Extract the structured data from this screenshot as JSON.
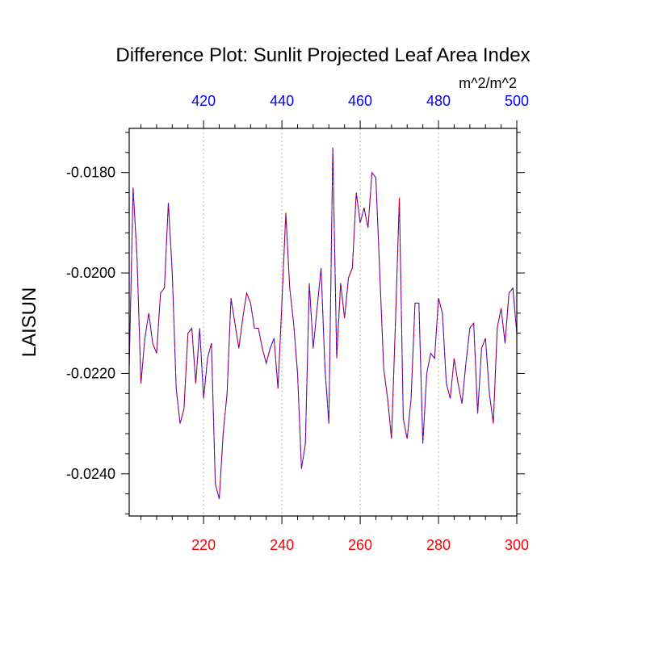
{
  "chart_data": {
    "type": "line",
    "title": "Difference Plot: Sunlit Projected Leaf Area Index",
    "units": "m^2/m^2",
    "ylabel": "LAISUN",
    "xlabel": "",
    "x_range": [
      201,
      300
    ],
    "x_ticks": [
      "220",
      "240",
      "260",
      "280",
      "300"
    ],
    "x_top_range": [
      401,
      500
    ],
    "x_top_ticks": [
      "420",
      "440",
      "460",
      "480",
      "500"
    ],
    "ylim": [
      -0.02484,
      -0.01712
    ],
    "y_ticks": [
      "-0.0180",
      "-0.0200",
      "-0.0220",
      "-0.0240"
    ],
    "bottom_axis_color": "#ff0000",
    "top_axis_color": "#0000ff",
    "grid": "vertical dotted at labeled x ticks",
    "series": [
      {
        "color": "#0000ff",
        "style": "solid",
        "x": [
          201,
          202,
          203,
          204,
          205,
          206,
          207,
          208,
          209,
          210,
          211,
          212,
          213,
          214,
          215,
          216,
          217,
          218,
          219,
          220,
          221,
          222,
          223,
          224,
          225,
          226,
          227,
          228,
          229,
          230,
          231,
          232,
          233,
          234,
          235,
          236,
          237,
          238,
          239,
          240,
          241,
          242,
          243,
          244,
          245,
          246,
          247,
          248,
          249,
          250,
          251,
          252,
          253,
          254,
          255,
          256,
          257,
          258,
          259,
          260,
          261,
          262,
          263,
          264,
          265,
          266,
          267,
          268,
          269,
          270,
          271,
          272,
          273,
          274,
          275,
          276,
          277,
          278,
          279,
          280,
          281,
          282,
          283,
          284,
          285,
          286,
          287,
          288,
          289,
          290,
          291,
          292,
          293,
          294,
          295,
          296,
          297,
          298,
          299,
          300
        ],
        "y": [
          -0.0219,
          -0.0183,
          -0.0197,
          -0.0222,
          -0.0213,
          -0.0208,
          -0.0214,
          -0.0216,
          -0.0204,
          -0.0203,
          -0.0186,
          -0.02,
          -0.0223,
          -0.023,
          -0.0227,
          -0.0212,
          -0.0211,
          -0.0222,
          -0.0211,
          -0.0225,
          -0.0217,
          -0.0214,
          -0.0242,
          -0.0245,
          -0.0232,
          -0.0224,
          -0.0205,
          -0.021,
          -0.0215,
          -0.0209,
          -0.0204,
          -0.0206,
          -0.0211,
          -0.0211,
          -0.0215,
          -0.0218,
          -0.0215,
          -0.0213,
          -0.0223,
          -0.0206,
          -0.0188,
          -0.0203,
          -0.021,
          -0.022,
          -0.0239,
          -0.0234,
          -0.0202,
          -0.0215,
          -0.0207,
          -0.0199,
          -0.0219,
          -0.023,
          -0.0175,
          -0.0217,
          -0.0202,
          -0.0209,
          -0.0201,
          -0.0199,
          -0.0184,
          -0.019,
          -0.0187,
          -0.0191,
          -0.018,
          -0.0181,
          -0.02,
          -0.0219,
          -0.0225,
          -0.0233,
          -0.021,
          -0.0185,
          -0.0229,
          -0.0233,
          -0.0225,
          -0.0206,
          -0.0206,
          -0.0234,
          -0.022,
          -0.0216,
          -0.0217,
          -0.0205,
          -0.0208,
          -0.0222,
          -0.0225,
          -0.0217,
          -0.0222,
          -0.0226,
          -0.0218,
          -0.0211,
          -0.021,
          -0.0228,
          -0.0215,
          -0.0213,
          -0.0224,
          -0.023,
          -0.0211,
          -0.0207,
          -0.0214,
          -0.0204,
          -0.0203,
          -0.0212
        ]
      },
      {
        "color": "#ff0000",
        "style": "dashed",
        "x": [
          201,
          202,
          203,
          204,
          205,
          206,
          207,
          208,
          209,
          210,
          211,
          212,
          213,
          214,
          215,
          216,
          217,
          218,
          219,
          220,
          221,
          222,
          223,
          224,
          225,
          226,
          227,
          228,
          229,
          230,
          231,
          232,
          233,
          234,
          235,
          236,
          237,
          238,
          239,
          240,
          241,
          242,
          243,
          244,
          245,
          246,
          247,
          248,
          249,
          250,
          251,
          252,
          253,
          254,
          255,
          256,
          257,
          258,
          259,
          260,
          261,
          262,
          263,
          264,
          265,
          266,
          267,
          268,
          269,
          270,
          271,
          272,
          273,
          274,
          275,
          276,
          277,
          278,
          279,
          280,
          281,
          282,
          283,
          284,
          285,
          286,
          287,
          288,
          289,
          290,
          291,
          292,
          293,
          294,
          295,
          296,
          297,
          298,
          299,
          300
        ],
        "y": [
          -0.0219,
          -0.0183,
          -0.0197,
          -0.0222,
          -0.0213,
          -0.0208,
          -0.0214,
          -0.0216,
          -0.0204,
          -0.0203,
          -0.0186,
          -0.02,
          -0.0223,
          -0.023,
          -0.0227,
          -0.0212,
          -0.0211,
          -0.0222,
          -0.0211,
          -0.0225,
          -0.0217,
          -0.0214,
          -0.0242,
          -0.0245,
          -0.0232,
          -0.0224,
          -0.0205,
          -0.021,
          -0.0215,
          -0.0209,
          -0.0204,
          -0.0206,
          -0.0211,
          -0.0211,
          -0.0215,
          -0.0218,
          -0.0215,
          -0.0213,
          -0.0223,
          -0.0206,
          -0.0188,
          -0.0203,
          -0.021,
          -0.022,
          -0.0239,
          -0.0234,
          -0.0202,
          -0.0215,
          -0.0207,
          -0.0199,
          -0.0219,
          -0.023,
          -0.0175,
          -0.0217,
          -0.0202,
          -0.0209,
          -0.0201,
          -0.0199,
          -0.0184,
          -0.019,
          -0.0187,
          -0.0191,
          -0.018,
          -0.0181,
          -0.02,
          -0.0219,
          -0.0225,
          -0.0233,
          -0.021,
          -0.0185,
          -0.0229,
          -0.0233,
          -0.0225,
          -0.0206,
          -0.0206,
          -0.0234,
          -0.022,
          -0.0216,
          -0.0217,
          -0.0205,
          -0.0208,
          -0.0222,
          -0.0225,
          -0.0217,
          -0.0222,
          -0.0226,
          -0.0218,
          -0.0211,
          -0.021,
          -0.0228,
          -0.0215,
          -0.0213,
          -0.0224,
          -0.023,
          -0.0211,
          -0.0207,
          -0.0214,
          -0.0204,
          -0.0203,
          -0.0212
        ]
      }
    ]
  }
}
